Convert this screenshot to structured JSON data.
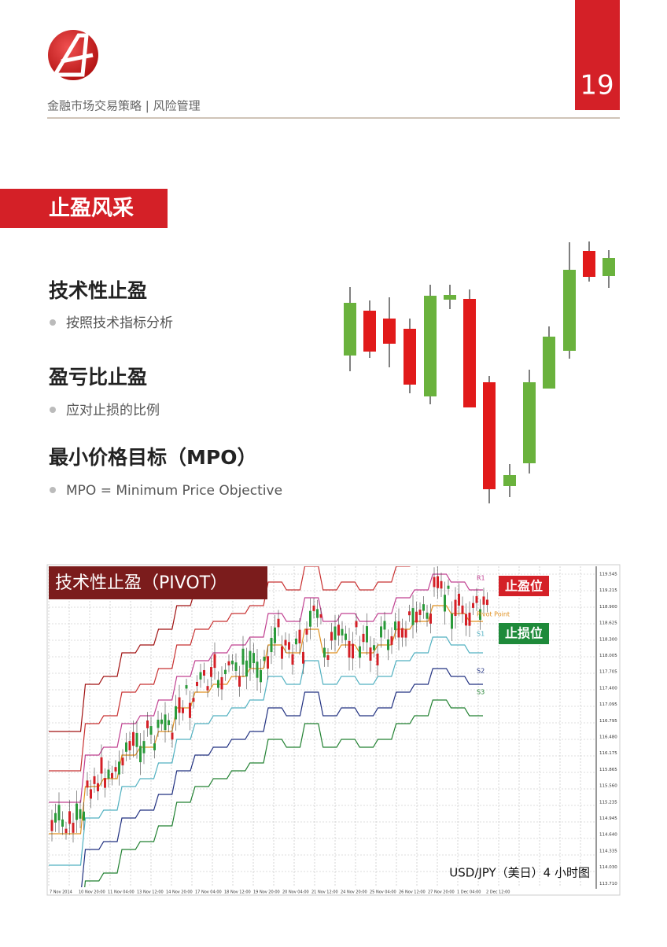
{
  "header": {
    "subtitle": "金融市场交易策略 | 风险管理",
    "page_number": "19"
  },
  "section": {
    "title": "止盈风采"
  },
  "items": [
    {
      "heading": "技术性止盈",
      "bullet": "按照技术指标分析"
    },
    {
      "heading": "盈亏比止盈",
      "bullet": "应对止损的比例"
    },
    {
      "heading": "最小价格目标（MPO）",
      "bullet": "MPO = Minimum Price Objective"
    }
  ],
  "screenshot": {
    "title": "技术性止盈（PIVOT）",
    "take_profit_label": "止盈位",
    "stop_loss_label": "止损位",
    "caption": "USD/JPY（美日）4 小时图",
    "line_labels": [
      "R1",
      "Pivot Point",
      "S1",
      "S2",
      "S3"
    ],
    "price_labels": [
      "119.545",
      "119.215",
      "118.900",
      "118.625",
      "118.300",
      "118.005",
      "117.705",
      "117.400",
      "117.095",
      "116.795",
      "116.480",
      "116.175",
      "115.865",
      "115.560",
      "115.235",
      "114.945",
      "114.640",
      "114.335",
      "114.030",
      "113.710"
    ],
    "time_labels": [
      "7 Nov 2014",
      "10 Nov 20:00",
      "11 Nov 04:00",
      "13 Nov 12:00",
      "14 Nov 20:00",
      "17 Nov 04:00",
      "18 Nov 12:00",
      "19 Nov 20:00",
      "20 Nov 04:00",
      "21 Nov 12:00",
      "24 Nov 20:00",
      "25 Nov 04:00",
      "26 Nov 12:00",
      "27 Nov 20:00",
      "1 Dec 04:00",
      "2 Dec 12:00"
    ]
  }
}
